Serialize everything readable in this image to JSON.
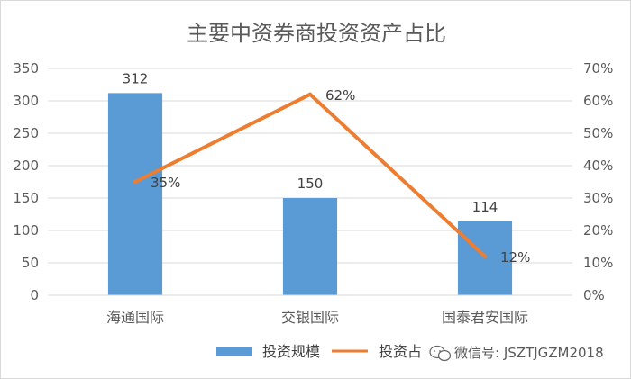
{
  "chart_data": {
    "type": "bar+line",
    "title": "主要中资券商投资资产占比",
    "categories": [
      "海通国际",
      "交银国际",
      "国泰君安国际"
    ],
    "series": [
      {
        "name": "投资规模",
        "type": "bar",
        "axis": "left",
        "values": [
          312,
          150,
          114
        ],
        "labels": [
          "312",
          "150",
          "114"
        ],
        "color": "#5B9BD5"
      },
      {
        "name": "投资占比",
        "type": "line",
        "axis": "right",
        "values": [
          35,
          62,
          12
        ],
        "labels": [
          "35%",
          "62%",
          "12%"
        ],
        "color": "#ED7D31"
      }
    ],
    "y_left": {
      "min": 0,
      "max": 350,
      "ticks": [
        0,
        50,
        100,
        150,
        200,
        250,
        300,
        350
      ],
      "tick_labels": [
        "0",
        "50",
        "100",
        "150",
        "200",
        "250",
        "300",
        "350"
      ]
    },
    "y_right": {
      "min": 0,
      "max": 70,
      "ticks": [
        0,
        10,
        20,
        30,
        40,
        50,
        60,
        70
      ],
      "tick_labels": [
        "0%",
        "10%",
        "20%",
        "30%",
        "40%",
        "50%",
        "60%",
        "70%"
      ]
    },
    "grid": true,
    "legend": "bottom",
    "legend_labels": [
      "投资规模",
      "投资占比"
    ]
  },
  "watermark": {
    "text": "微信号: JSZTJGZM2018"
  }
}
